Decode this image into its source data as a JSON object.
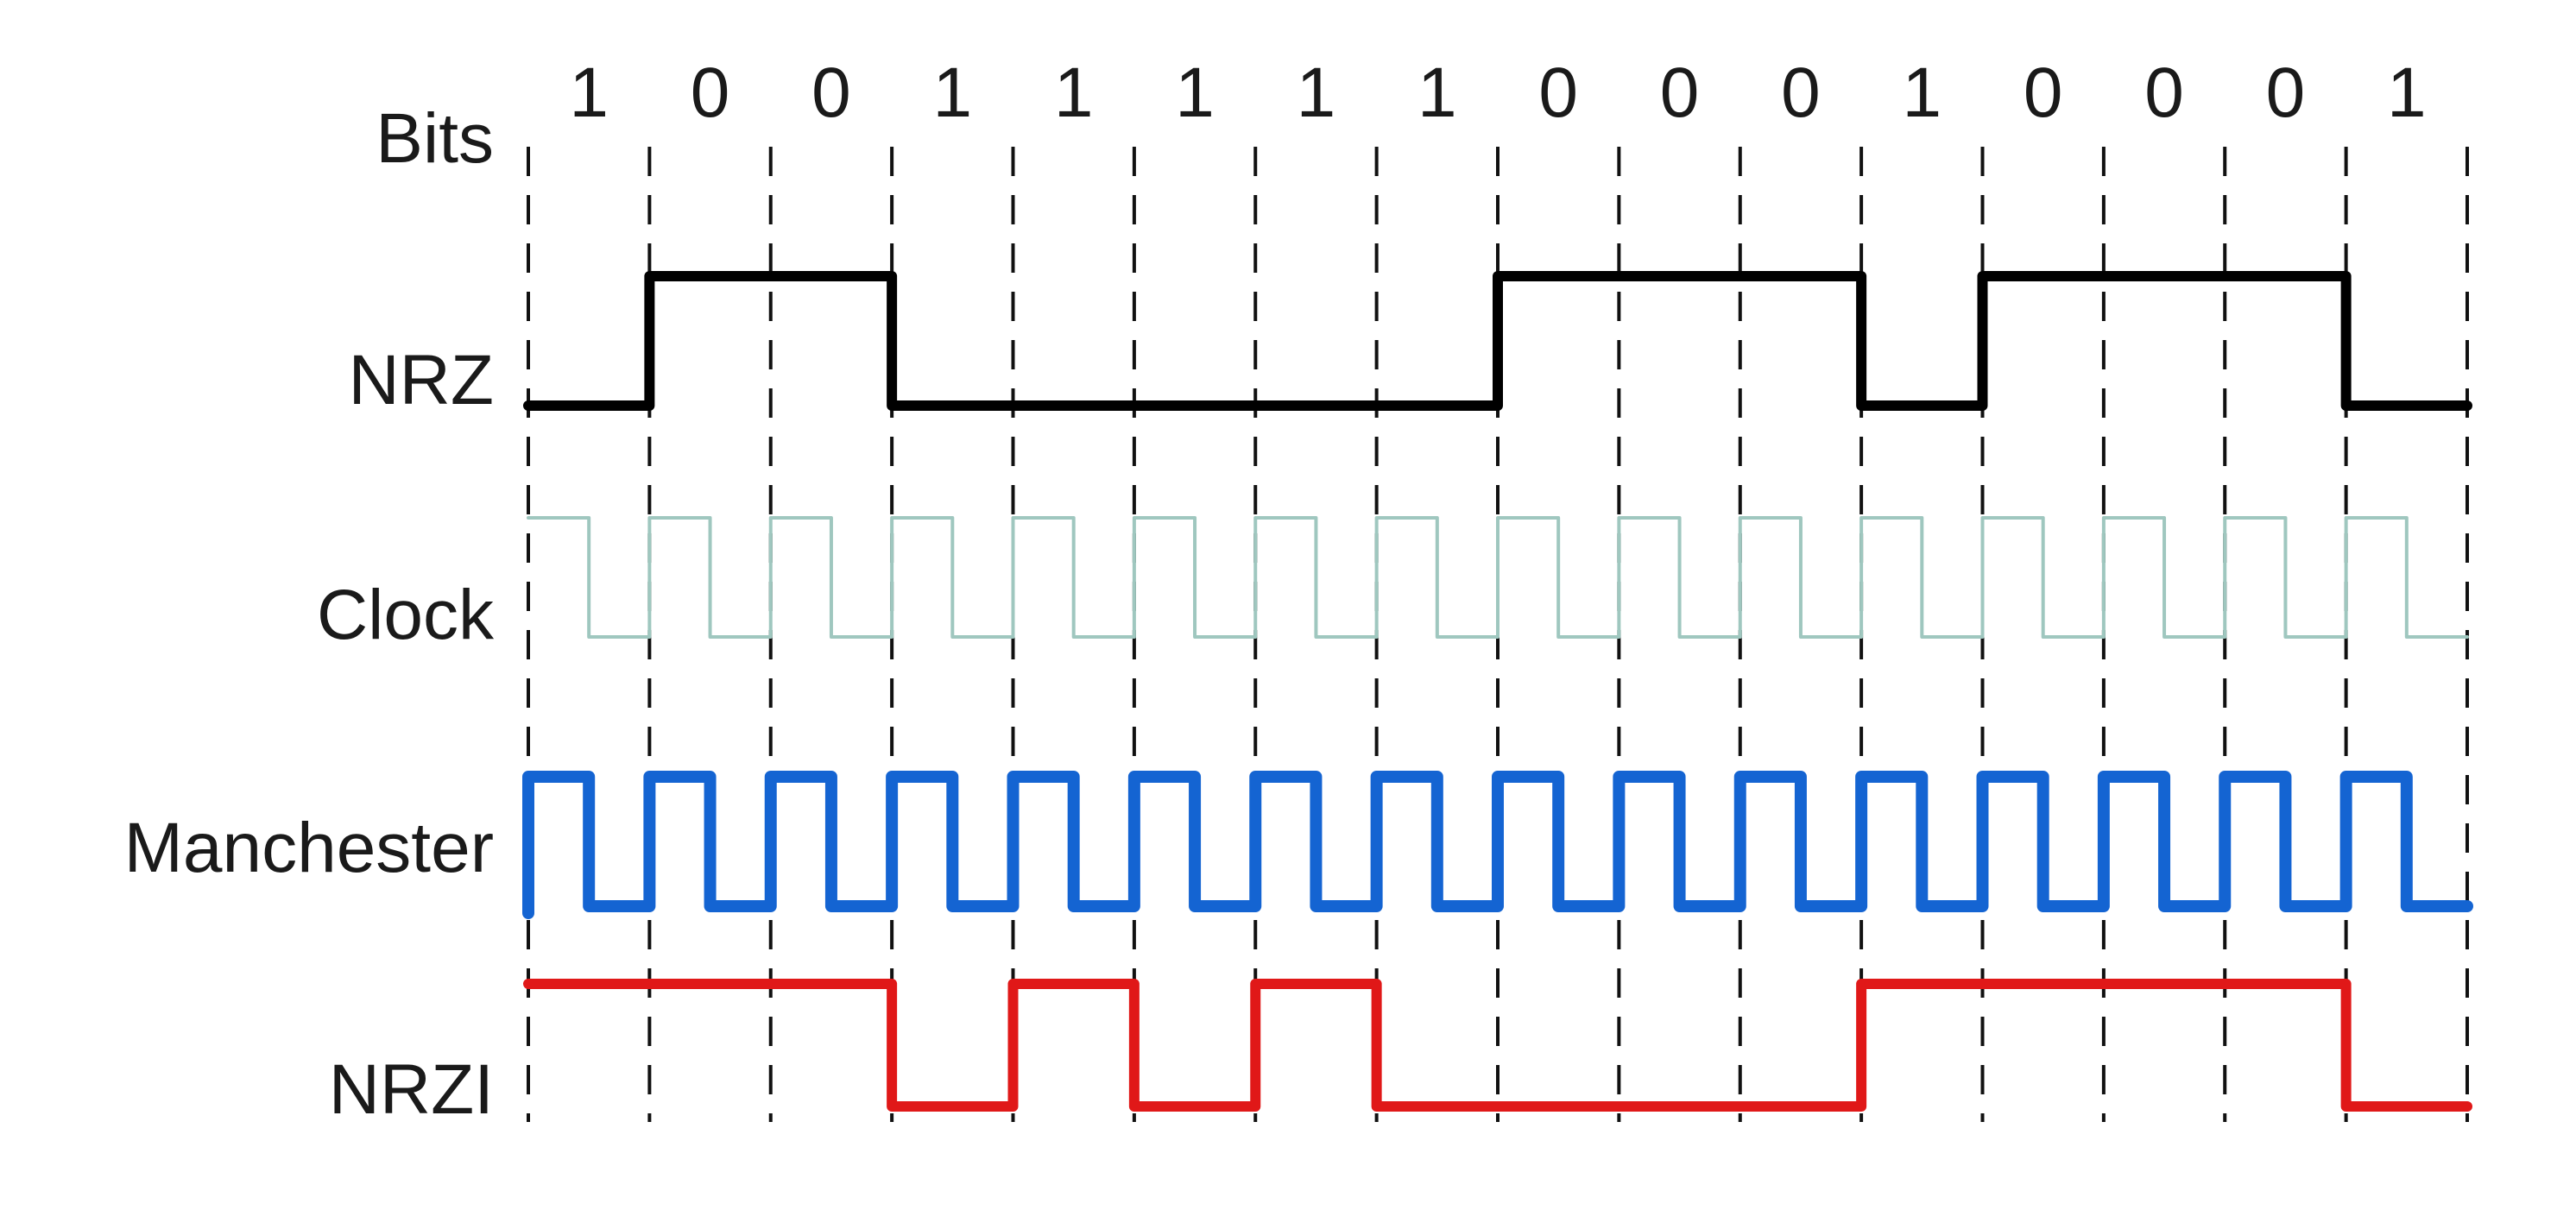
{
  "diagram": {
    "bits": [
      "1",
      "0",
      "0",
      "1",
      "1",
      "1",
      "1",
      "1",
      "0",
      "0",
      "0",
      "1",
      "0",
      "0",
      "0",
      "1"
    ],
    "rows": [
      {
        "key": "bits",
        "label": "Bits"
      },
      {
        "key": "nrz",
        "label": "NRZ"
      },
      {
        "key": "clock",
        "label": "Clock"
      },
      {
        "key": "manchester",
        "label": "Manchester"
      },
      {
        "key": "nrzi",
        "label": "NRZI"
      }
    ],
    "signals": {
      "nrz": [
        0,
        1,
        1,
        0,
        0,
        0,
        0,
        0,
        1,
        1,
        1,
        0,
        1,
        1,
        1,
        0
      ],
      "nrzi_start": 0,
      "manchester_start": 0
    },
    "colors": {
      "nrz": "#000000",
      "clock": "#9fc7bf",
      "manchester": "#1464d2",
      "nrzi": "#e01818",
      "dividers": "#111111"
    }
  }
}
